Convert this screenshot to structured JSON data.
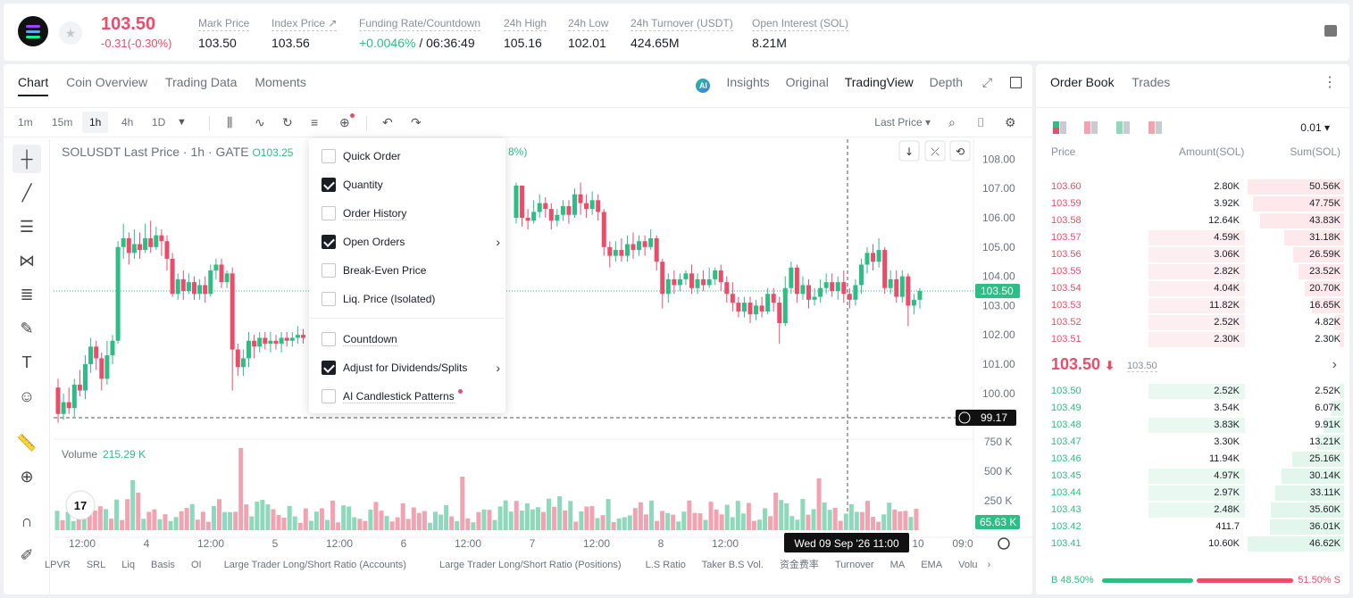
{
  "header": {
    "last_price": "103.50",
    "change": "-0.31(-0.30%)",
    "stats": [
      {
        "label": "Mark Price",
        "value": "103.50"
      },
      {
        "label": "Index Price ↗",
        "value": "103.56"
      },
      {
        "label": "Funding Rate/Countdown",
        "value": "+0.0046%",
        "value2": " / 06:36:49"
      },
      {
        "label": "24h High",
        "value": "105.16"
      },
      {
        "label": "24h Low",
        "value": "102.01"
      },
      {
        "label": "24h Turnover (USDT)",
        "value": "424.65M"
      },
      {
        "label": "Open Interest (SOL)",
        "value": "8.21M"
      }
    ]
  },
  "chart_tabs": [
    "Chart",
    "Coin Overview",
    "Trading Data",
    "Moments"
  ],
  "view_tabs": {
    "insights": "Insights",
    "original": "Original",
    "tradingview": "TradingView",
    "depth": "Depth"
  },
  "timeframes": [
    "1m",
    "15m",
    "1h",
    "4h",
    "1D"
  ],
  "price_type": "Last Price",
  "legend": {
    "title": "SOLUSDT Last Price · 1h · GATE",
    "open": "O103.25",
    "change_tail": "8%)"
  },
  "volume_legend": {
    "label": "Volume",
    "value": "215.29 K"
  },
  "crosshair": {
    "price": "99.17",
    "time": "Wed 09 Sep '26   11:00"
  },
  "price_labels": [
    "108.00",
    "107.00",
    "106.00",
    "105.00",
    "104.00",
    "103.00",
    "102.00",
    "101.00",
    "100.00",
    "750 K",
    "500 K",
    "250 K"
  ],
  "last_price_tag": "103.50",
  "volume_tag": "65.63 K",
  "time_labels": [
    "12:00",
    "4",
    "12:00",
    "5",
    "12:00",
    "6",
    "12:00",
    "7",
    "12:00",
    "8",
    "12:00",
    "10",
    "09:0"
  ],
  "menu": {
    "items": [
      {
        "label": "Quick Order",
        "checked": false
      },
      {
        "label": "Quantity",
        "checked": true
      },
      {
        "label": "Order History",
        "checked": false
      },
      {
        "label": "Open Orders",
        "checked": true,
        "submenu": true
      },
      {
        "label": "Break-Even Price",
        "checked": false
      },
      {
        "label": "Liq. Price (Isolated)",
        "checked": false
      },
      {
        "label": "Countdown",
        "checked": false
      },
      {
        "label": "Adjust for Dividends/Splits",
        "checked": true,
        "submenu": true
      },
      {
        "label": "AI Candlestick Patterns",
        "checked": false,
        "dot": true
      }
    ]
  },
  "indicators": [
    "LPVR",
    "SRL",
    "Liq",
    "Basis",
    "OI",
    "Large Trader Long/Short Ratio (Accounts)",
    "Large Trader Long/Short Ratio (Positions)",
    "L.S Ratio",
    "Taker B.S Vol.",
    "资金费率",
    "Turnover",
    "MA",
    "EMA",
    "Volu"
  ],
  "orderbook": {
    "tabs": [
      "Order Book",
      "Trades"
    ],
    "tick": "0.01",
    "headers": {
      "price": "Price",
      "amount": "Amount(SOL)",
      "sum": "Sum(SOL)"
    },
    "asks": [
      {
        "price": "103.60",
        "amount": "2.80K",
        "sum": "50.56K",
        "amt_frac": 0,
        "sum_frac": 1.0
      },
      {
        "price": "103.59",
        "amount": "3.92K",
        "sum": "47.75K",
        "amt_frac": 0,
        "sum_frac": 0.94
      },
      {
        "price": "103.58",
        "amount": "12.64K",
        "sum": "43.83K",
        "amt_frac": 0,
        "sum_frac": 0.87
      },
      {
        "price": "103.57",
        "amount": "4.59K",
        "sum": "31.18K",
        "amt_frac": 0.36,
        "sum_frac": 0.62
      },
      {
        "price": "103.56",
        "amount": "3.06K",
        "sum": "26.59K",
        "amt_frac": 0.36,
        "sum_frac": 0.53
      },
      {
        "price": "103.55",
        "amount": "2.82K",
        "sum": "23.52K",
        "amt_frac": 0.36,
        "sum_frac": 0.47
      },
      {
        "price": "103.54",
        "amount": "4.04K",
        "sum": "20.70K",
        "amt_frac": 0.36,
        "sum_frac": 0.41
      },
      {
        "price": "103.53",
        "amount": "11.82K",
        "sum": "16.65K",
        "amt_frac": 0.36,
        "sum_frac": 0.33
      },
      {
        "price": "103.52",
        "amount": "2.52K",
        "sum": "4.82K",
        "amt_frac": 0.36,
        "sum_frac": 0.1
      },
      {
        "price": "103.51",
        "amount": "2.30K",
        "sum": "2.30K",
        "amt_frac": 0.36,
        "sum_frac": 0.05
      }
    ],
    "mid": {
      "price": "103.50",
      "arrow": "⬇",
      "mark": "103.50"
    },
    "bids": [
      {
        "price": "103.50",
        "amount": "2.52K",
        "sum": "2.52K",
        "amt_frac": 0.36,
        "sum_frac": 0.05
      },
      {
        "price": "103.49",
        "amount": "3.54K",
        "sum": "6.07K",
        "amt_frac": 0,
        "sum_frac": 0.13
      },
      {
        "price": "103.48",
        "amount": "3.83K",
        "sum": "9.91K",
        "amt_frac": 0.36,
        "sum_frac": 0.21
      },
      {
        "price": "103.47",
        "amount": "3.30K",
        "sum": "13.21K",
        "amt_frac": 0,
        "sum_frac": 0.28
      },
      {
        "price": "103.46",
        "amount": "11.94K",
        "sum": "25.16K",
        "amt_frac": 0,
        "sum_frac": 0.54
      },
      {
        "price": "103.45",
        "amount": "4.97K",
        "sum": "30.14K",
        "amt_frac": 0.36,
        "sum_frac": 0.65
      },
      {
        "price": "103.44",
        "amount": "2.97K",
        "sum": "33.11K",
        "amt_frac": 0.36,
        "sum_frac": 0.71
      },
      {
        "price": "103.43",
        "amount": "2.48K",
        "sum": "35.60K",
        "amt_frac": 0.36,
        "sum_frac": 0.76
      },
      {
        "price": "103.42",
        "amount": "411.7",
        "sum": "36.01K",
        "amt_frac": 0,
        "sum_frac": 0.77
      },
      {
        "price": "103.41",
        "amount": "10.60K",
        "sum": "46.62K",
        "amt_frac": 0,
        "sum_frac": 1.0
      }
    ],
    "buy_ratio": "48.50%",
    "sell_ratio": "51.50%",
    "buy_label": "B",
    "sell_label": "S"
  },
  "colors": {
    "up": "#2ebd85",
    "down": "#ea4d6a",
    "up_vol": "#8ed8bb",
    "down_vol": "#f2a3b2"
  },
  "chart_data": {
    "type": "candlestick",
    "symbol": "SOLUSDT",
    "interval": "1h",
    "ylim": [
      98.5,
      108.5
    ],
    "candles": [
      [
        100.2,
        99.3,
        100.5,
        99.0
      ],
      [
        99.3,
        99.7,
        100.0,
        99.1
      ],
      [
        99.7,
        99.5,
        100.2,
        99.3
      ],
      [
        99.5,
        100.3,
        100.5,
        99.2
      ],
      [
        100.3,
        100.1,
        100.8,
        99.9
      ],
      [
        100.1,
        101.0,
        101.3,
        99.8
      ],
      [
        101.0,
        101.6,
        101.9,
        100.7
      ],
      [
        101.6,
        101.2,
        101.8,
        100.8
      ],
      [
        101.2,
        100.5,
        101.4,
        100.1
      ],
      [
        100.5,
        101.3,
        101.8,
        100.3
      ],
      [
        101.3,
        101.8,
        102.0,
        101.0
      ],
      [
        101.8,
        105.0,
        105.2,
        101.7
      ],
      [
        105.0,
        105.3,
        105.8,
        104.6
      ],
      [
        105.3,
        104.8,
        105.5,
        104.4
      ],
      [
        104.8,
        105.1,
        105.6,
        104.6
      ],
      [
        105.1,
        104.9,
        105.5,
        104.6
      ],
      [
        104.9,
        105.3,
        105.8,
        104.8
      ],
      [
        105.3,
        105.0,
        105.9,
        104.8
      ],
      [
        105.0,
        105.4,
        105.7,
        104.9
      ],
      [
        105.4,
        105.2,
        105.6,
        104.7
      ],
      [
        105.2,
        104.6,
        105.4,
        104.2
      ],
      [
        104.6,
        103.4,
        104.8,
        103.3
      ],
      [
        103.4,
        103.9,
        104.1,
        103.2
      ],
      [
        103.9,
        103.5,
        104.2,
        103.2
      ],
      [
        103.5,
        103.8,
        104.1,
        103.4
      ],
      [
        103.8,
        103.4,
        104.0,
        103.2
      ],
      [
        103.4,
        103.7,
        103.9,
        103.2
      ],
      [
        103.7,
        103.4,
        104.0,
        103.1
      ],
      [
        103.4,
        104.2,
        104.4,
        103.3
      ],
      [
        104.2,
        104.4,
        104.6,
        103.9
      ],
      [
        104.4,
        103.8,
        104.6,
        103.6
      ],
      [
        103.8,
        104.1,
        104.2,
        103.6
      ],
      [
        104.1,
        101.5,
        104.3,
        100.1
      ],
      [
        101.5,
        100.9,
        101.7,
        100.6
      ],
      [
        100.9,
        101.2,
        101.5,
        100.6
      ],
      [
        101.2,
        101.8,
        102.1,
        100.9
      ],
      [
        101.8,
        101.6,
        102.0,
        101.2
      ],
      [
        101.6,
        101.9,
        102.1,
        101.4
      ],
      [
        101.9,
        101.7,
        102.1,
        101.5
      ],
      [
        101.7,
        101.8,
        102.1,
        101.4
      ],
      [
        101.8,
        101.7,
        102.0,
        101.5
      ],
      [
        101.7,
        101.9,
        102.1,
        101.4
      ],
      [
        101.9,
        101.8,
        102.1,
        101.6
      ],
      [
        101.8,
        101.9,
        102.1,
        101.6
      ],
      [
        101.9,
        102.0,
        102.3,
        101.7
      ],
      [
        102.0,
        101.9,
        102.2,
        101.7
      ]
    ],
    "candles_right": [
      [
        106.0,
        107.1,
        107.2,
        105.8
      ],
      [
        107.1,
        106.0,
        107.1,
        105.7
      ],
      [
        106.0,
        105.9,
        106.3,
        105.6
      ],
      [
        105.9,
        106.2,
        106.6,
        105.8
      ],
      [
        106.2,
        106.5,
        106.8,
        106.0
      ],
      [
        106.5,
        106.3,
        106.7,
        106.0
      ],
      [
        106.3,
        105.9,
        106.5,
        105.6
      ],
      [
        105.9,
        106.1,
        106.3,
        105.7
      ],
      [
        106.1,
        106.4,
        106.6,
        105.9
      ],
      [
        106.4,
        106.1,
        106.6,
        105.8
      ],
      [
        106.1,
        106.8,
        107.0,
        106.0
      ],
      [
        106.8,
        106.5,
        107.2,
        106.1
      ],
      [
        106.5,
        106.3,
        106.8,
        106.0
      ],
      [
        106.3,
        106.6,
        106.9,
        106.1
      ],
      [
        106.6,
        106.2,
        106.8,
        105.9
      ],
      [
        106.2,
        105.0,
        106.3,
        104.7
      ],
      [
        105.0,
        104.7,
        105.2,
        104.3
      ],
      [
        104.7,
        104.9,
        105.2,
        104.5
      ],
      [
        104.9,
        104.7,
        105.3,
        104.5
      ],
      [
        104.7,
        105.1,
        105.4,
        104.5
      ],
      [
        105.1,
        104.9,
        105.5,
        104.6
      ],
      [
        104.9,
        105.2,
        105.4,
        104.7
      ],
      [
        105.2,
        105.0,
        105.4,
        104.7
      ],
      [
        105.0,
        105.3,
        105.6,
        104.9
      ],
      [
        105.3,
        104.5,
        105.4,
        104.2
      ],
      [
        104.5,
        103.4,
        104.6,
        102.9
      ],
      [
        103.4,
        103.9,
        104.1,
        103.1
      ],
      [
        103.9,
        103.7,
        104.2,
        103.4
      ],
      [
        103.7,
        103.9,
        104.1,
        103.5
      ],
      [
        103.9,
        104.1,
        104.2,
        103.7
      ],
      [
        104.1,
        103.6,
        104.4,
        103.4
      ],
      [
        103.6,
        103.9,
        104.1,
        103.4
      ],
      [
        103.9,
        103.7,
        104.2,
        103.5
      ],
      [
        103.7,
        103.9,
        104.3,
        103.6
      ],
      [
        103.9,
        104.2,
        104.3,
        103.7
      ],
      [
        104.2,
        103.8,
        104.4,
        103.5
      ],
      [
        103.8,
        103.4,
        104.0,
        103.1
      ],
      [
        103.4,
        103.1,
        103.8,
        102.8
      ],
      [
        103.1,
        102.8,
        103.3,
        102.6
      ],
      [
        102.8,
        103.1,
        103.3,
        102.6
      ],
      [
        103.1,
        102.7,
        103.3,
        102.4
      ],
      [
        102.7,
        103.0,
        103.2,
        102.5
      ],
      [
        103.0,
        102.8,
        103.3,
        102.6
      ],
      [
        102.8,
        103.4,
        103.6,
        102.7
      ],
      [
        103.4,
        103.1,
        103.6,
        102.8
      ],
      [
        103.1,
        102.4,
        103.3,
        101.7
      ],
      [
        102.4,
        103.6,
        104.0,
        102.3
      ],
      [
        103.6,
        104.3,
        104.5,
        103.4
      ],
      [
        104.3,
        103.4,
        104.4,
        103.1
      ],
      [
        103.4,
        103.7,
        104.0,
        103.2
      ],
      [
        103.7,
        103.2,
        103.9,
        102.9
      ],
      [
        103.2,
        103.3,
        103.6,
        103.0
      ],
      [
        103.3,
        103.6,
        103.9,
        103.1
      ],
      [
        103.6,
        103.8,
        104.1,
        103.4
      ],
      [
        103.8,
        103.5,
        104.1,
        103.3
      ],
      [
        103.5,
        103.8,
        104.0,
        103.2
      ],
      [
        103.8,
        103.4,
        104.2,
        103.1
      ],
      [
        103.4,
        103.2,
        103.6,
        102.9
      ],
      [
        103.2,
        103.7,
        103.9,
        103.0
      ],
      [
        103.7,
        104.4,
        104.6,
        103.4
      ],
      [
        104.4,
        104.8,
        105.0,
        104.1
      ],
      [
        104.8,
        104.5,
        105.1,
        104.2
      ],
      [
        104.5,
        104.9,
        105.3,
        104.3
      ],
      [
        104.9,
        103.6,
        105.0,
        103.4
      ],
      [
        103.6,
        103.9,
        104.2,
        103.4
      ],
      [
        103.9,
        103.3,
        104.2,
        103.1
      ],
      [
        103.3,
        104.0,
        104.2,
        103.1
      ],
      [
        104.0,
        103.0,
        104.1,
        102.3
      ],
      [
        103.0,
        103.2,
        103.4,
        102.7
      ],
      [
        103.2,
        103.5,
        103.6,
        102.9
      ]
    ]
  }
}
